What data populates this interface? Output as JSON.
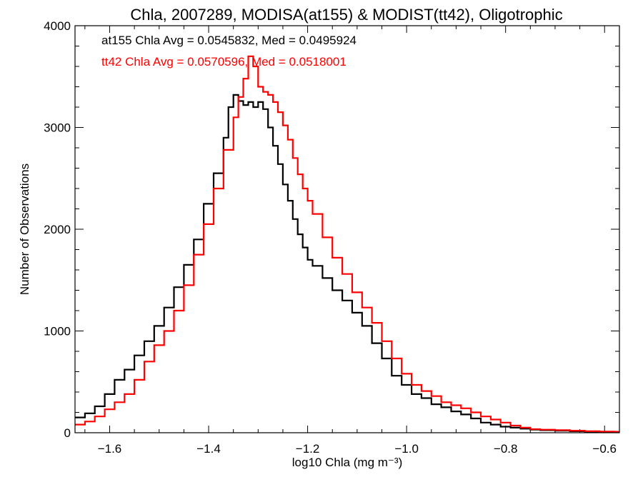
{
  "chart_data": {
    "type": "line",
    "subtype": "step-histogram",
    "title": "Chla, 2007289, MODISA(at155) & MODIST(tt42), Oligotrophic",
    "xlabel": "log10 Chla (mg m⁻³)",
    "ylabel": "Number of Observations",
    "xlim": [
      -1.67,
      -0.57
    ],
    "ylim": [
      0,
      4000
    ],
    "x_ticks": [
      -1.6,
      -1.4,
      -1.2,
      -1.0,
      -0.8,
      -0.6
    ],
    "x_tick_labels": [
      "−1.6",
      "−1.4",
      "−1.2",
      "−1.0",
      "−0.8",
      "−0.6"
    ],
    "y_ticks": [
      0,
      1000,
      2000,
      3000,
      4000
    ],
    "y_tick_labels": [
      "0",
      "1000",
      "2000",
      "3000",
      "4000"
    ],
    "grid": false,
    "annotations": [
      {
        "text": "at155 Chla Avg = 0.0545832, Med = 0.0495924",
        "color": "#000000"
      },
      {
        "text": "tt42 Chla Avg = 0.0570596, Med = 0.0518001",
        "color": "#ff0000"
      }
    ],
    "series": [
      {
        "color": "#000000",
        "x": [
          -1.67,
          -1.65,
          -1.63,
          -1.61,
          -1.59,
          -1.57,
          -1.55,
          -1.53,
          -1.51,
          -1.49,
          -1.47,
          -1.45,
          -1.43,
          -1.41,
          -1.39,
          -1.37,
          -1.36,
          -1.35,
          -1.34,
          -1.33,
          -1.32,
          -1.31,
          -1.3,
          -1.29,
          -1.28,
          -1.27,
          -1.26,
          -1.25,
          -1.24,
          -1.23,
          -1.22,
          -1.21,
          -1.2,
          -1.19,
          -1.17,
          -1.15,
          -1.13,
          -1.11,
          -1.09,
          -1.07,
          -1.05,
          -1.03,
          -1.01,
          -0.99,
          -0.97,
          -0.95,
          -0.93,
          -0.91,
          -0.89,
          -0.87,
          -0.85,
          -0.83,
          -0.81,
          -0.79,
          -0.77,
          -0.75,
          -0.73,
          -0.7,
          -0.67,
          -0.64,
          -0.61,
          -0.58
        ],
        "values": [
          150,
          190,
          260,
          380,
          520,
          620,
          760,
          900,
          1050,
          1230,
          1430,
          1650,
          1900,
          2250,
          2550,
          2900,
          3200,
          3320,
          3260,
          3220,
          3250,
          3200,
          3250,
          3180,
          3000,
          2820,
          2640,
          2440,
          2280,
          2100,
          1950,
          1820,
          1700,
          1640,
          1520,
          1400,
          1300,
          1180,
          1050,
          880,
          730,
          560,
          470,
          380,
          340,
          280,
          250,
          210,
          180,
          140,
          100,
          80,
          60,
          50,
          40,
          30,
          25,
          20,
          15,
          10,
          10,
          5
        ]
      },
      {
        "color": "#ff0000",
        "x": [
          -1.67,
          -1.65,
          -1.63,
          -1.61,
          -1.59,
          -1.57,
          -1.55,
          -1.53,
          -1.51,
          -1.49,
          -1.47,
          -1.45,
          -1.43,
          -1.41,
          -1.39,
          -1.37,
          -1.35,
          -1.34,
          -1.33,
          -1.32,
          -1.31,
          -1.3,
          -1.29,
          -1.28,
          -1.27,
          -1.26,
          -1.25,
          -1.24,
          -1.23,
          -1.22,
          -1.21,
          -1.2,
          -1.19,
          -1.17,
          -1.15,
          -1.13,
          -1.11,
          -1.09,
          -1.07,
          -1.05,
          -1.03,
          -1.01,
          -0.99,
          -0.97,
          -0.95,
          -0.93,
          -0.91,
          -0.89,
          -0.87,
          -0.85,
          -0.83,
          -0.81,
          -0.79,
          -0.77,
          -0.75,
          -0.73,
          -0.7,
          -0.67,
          -0.64,
          -0.61,
          -0.58
        ],
        "values": [
          80,
          110,
          160,
          230,
          300,
          380,
          520,
          700,
          860,
          1000,
          1200,
          1450,
          1750,
          2050,
          2400,
          2780,
          3100,
          3300,
          3480,
          3700,
          3600,
          3400,
          3350,
          3320,
          3250,
          3150,
          3020,
          2880,
          2700,
          2540,
          2400,
          2280,
          2150,
          1920,
          1720,
          1560,
          1380,
          1230,
          1080,
          900,
          730,
          580,
          470,
          410,
          360,
          300,
          270,
          240,
          200,
          160,
          130,
          100,
          70,
          50,
          35,
          30,
          25,
          20,
          15,
          12,
          10
        ]
      }
    ]
  }
}
